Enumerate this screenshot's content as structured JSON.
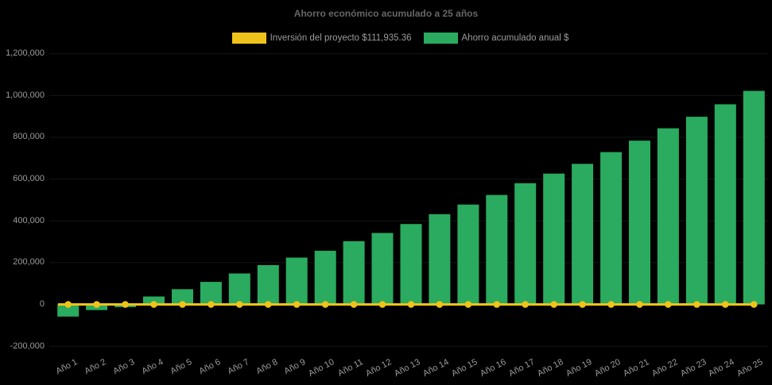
{
  "chart": {
    "title": "Ahorro económico acumulado a 25 años",
    "legend": [
      {
        "label": "Inversión del proyecto $111,935.36",
        "color": "#efc319"
      },
      {
        "label": "Ahorro acumulado anual $",
        "color": "#2aab5f"
      }
    ],
    "colors": {
      "background": "#000000",
      "bar": "#2aab5f",
      "line": "#efc319",
      "title_text": "#666666",
      "axis_text": "#9b9b9b"
    }
  },
  "chart_data": {
    "type": "bar",
    "title": "Ahorro económico acumulado a 25 años",
    "categories": [
      "Año 1",
      "Año 2",
      "Año 3",
      "Año 4",
      "Año 5",
      "Año 6",
      "Año 7",
      "Año 8",
      "Año 9",
      "Año 10",
      "Año 11",
      "Año 12",
      "Año 13",
      "Año 14",
      "Año 15",
      "Año 16",
      "Año 17",
      "Año 18",
      "Año 19",
      "Año 20",
      "Año 21",
      "Año 22",
      "Año 23",
      "Año 24",
      "Año 25"
    ],
    "series": [
      {
        "name": "Ahorro acumulado anual $",
        "type": "bar",
        "color": "#2aab5f",
        "values": [
          -58000,
          -27000,
          -13000,
          38000,
          73000,
          108000,
          148000,
          188000,
          224000,
          257000,
          303000,
          342000,
          385000,
          432000,
          478000,
          524000,
          580000,
          626000,
          673000,
          729000,
          784000,
          843000,
          898000,
          958000,
          1022000
        ]
      },
      {
        "name": "Inversión del proyecto $111,935.36",
        "type": "line",
        "color": "#efc319",
        "values": [
          0,
          0,
          0,
          0,
          0,
          0,
          0,
          0,
          0,
          0,
          0,
          0,
          0,
          0,
          0,
          0,
          0,
          0,
          0,
          0,
          0,
          0,
          0,
          0,
          0
        ]
      }
    ],
    "xlabel": "",
    "ylabel": "",
    "ylim": [
      -200000,
      1200000
    ],
    "ytick_interval": 200000,
    "yticks": [
      {
        "value": -200000,
        "label": "-200,000"
      },
      {
        "value": 0,
        "label": "0"
      },
      {
        "value": 200000,
        "label": "200,000"
      },
      {
        "value": 400000,
        "label": "400,000"
      },
      {
        "value": 600000,
        "label": "600,000"
      },
      {
        "value": 800000,
        "label": "800,000"
      },
      {
        "value": 1000000,
        "label": "1,000,000"
      },
      {
        "value": 1200000,
        "label": "1,200,000"
      }
    ],
    "legend_position": "top",
    "grid": false,
    "background": "#000000"
  }
}
